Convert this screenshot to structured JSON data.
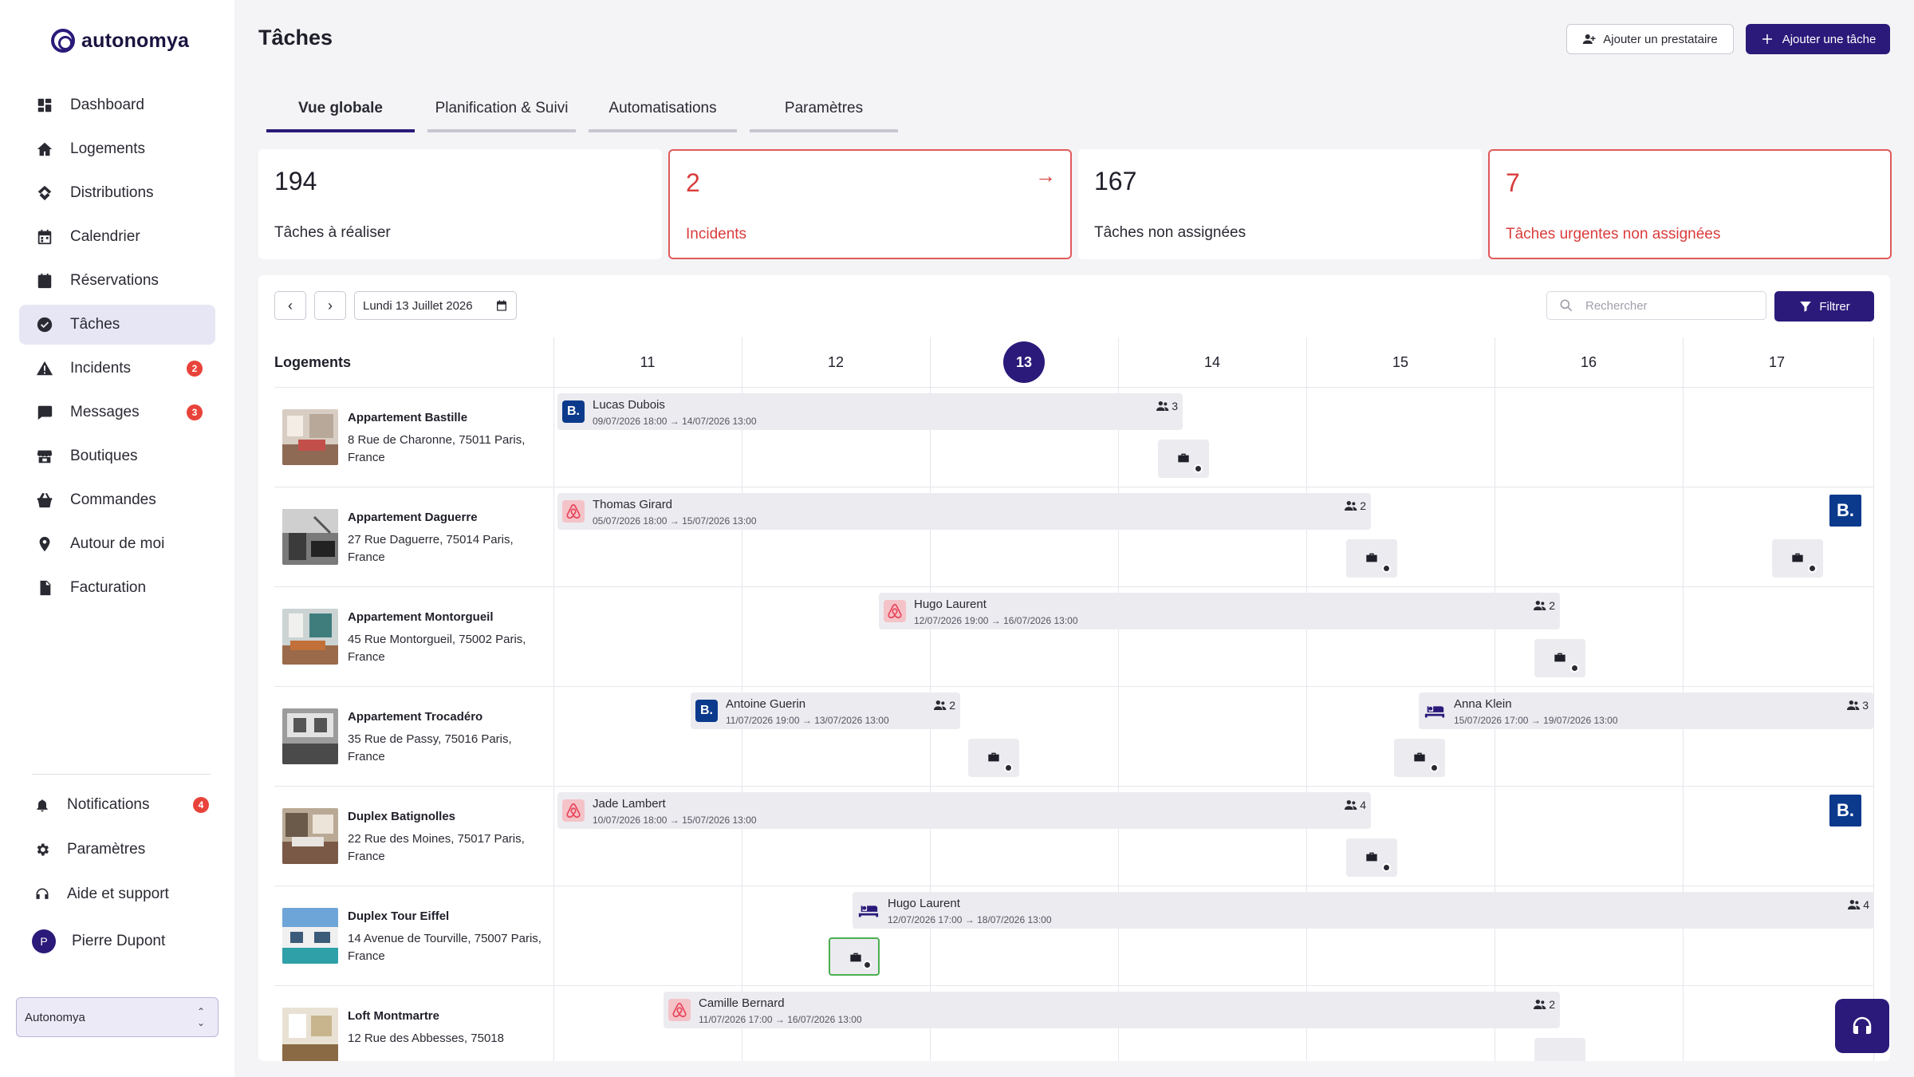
{
  "app": {
    "brand": "autonomya"
  },
  "sidebar": {
    "items": [
      {
        "label": "Dashboard",
        "icon": "dashboard-icon"
      },
      {
        "label": "Logements",
        "icon": "home-icon"
      },
      {
        "label": "Distributions",
        "icon": "distribution-icon"
      },
      {
        "label": "Calendrier",
        "icon": "calendar-icon"
      },
      {
        "label": "Réservations",
        "icon": "reservation-icon"
      },
      {
        "label": "Tâches",
        "icon": "check-circle-icon",
        "active": true
      },
      {
        "label": "Incidents",
        "icon": "warning-icon",
        "badge": "2"
      },
      {
        "label": "Messages",
        "icon": "chat-icon",
        "badge": "3"
      },
      {
        "label": "Boutiques",
        "icon": "store-icon"
      },
      {
        "label": "Commandes",
        "icon": "basket-icon"
      },
      {
        "label": "Autour de moi",
        "icon": "location-icon"
      },
      {
        "label": "Facturation",
        "icon": "invoice-icon"
      }
    ],
    "bottom": {
      "notifications": {
        "label": "Notifications",
        "badge": "4"
      },
      "settings": {
        "label": "Paramètres"
      },
      "help": {
        "label": "Aide et support"
      },
      "user": {
        "name": "Pierre Dupont",
        "initial": "P"
      }
    },
    "workspace": "Autonomya"
  },
  "header": {
    "title": "Tâches",
    "add_provider": "Ajouter un prestataire",
    "add_task": "Ajouter une tâche"
  },
  "tabs": [
    "Vue globale",
    "Planification & Suivi",
    "Automatisations",
    "Paramètres"
  ],
  "stats": [
    {
      "value": "194",
      "label": "Tâches à réaliser"
    },
    {
      "value": "2",
      "label": "Incidents"
    },
    {
      "value": "167",
      "label": "Tâches non assignées"
    },
    {
      "value": "7",
      "label": "Tâches urgentes non assignées"
    }
  ],
  "calendar": {
    "date_label": "Lundi 13 Juillet 2026",
    "search_placeholder": "Rechercher",
    "filter_label": "Filtrer",
    "column_label": "Logements",
    "days": [
      "11",
      "12",
      "13",
      "14",
      "15",
      "16",
      "17"
    ],
    "today": "13",
    "properties": [
      {
        "name": "Appartement Bastille",
        "address": "8 Rue de Charonne, 75011 Paris, France"
      },
      {
        "name": "Appartement Daguerre",
        "address": "27 Rue Daguerre, 75014 Paris, France"
      },
      {
        "name": "Appartement Montorgueil",
        "address": "45 Rue Montorgueil, 75002 Paris, France"
      },
      {
        "name": "Appartement Trocadéro",
        "address": "35 Rue de Passy, 75016 Paris, France"
      },
      {
        "name": "Duplex Batignolles",
        "address": "22 Rue des Moines, 75017 Paris, France"
      },
      {
        "name": "Duplex Tour Eiffel",
        "address": "14 Avenue de Tourville, 75007 Paris, France"
      },
      {
        "name": "Loft Montmartre",
        "address": "12 Rue des Abbesses, 75018"
      }
    ],
    "bookings": [
      {
        "guest": "Lucas Dubois",
        "dates": "09/07/2026 18:00 → 14/07/2026 13:00",
        "guests": "3",
        "platform": "booking"
      },
      {
        "guest": "Thomas Girard",
        "dates": "05/07/2026 18:00 → 15/07/2026 13:00",
        "guests": "2",
        "platform": "airbnb"
      },
      {
        "guest": "Hugo Laurent",
        "dates": "12/07/2026 19:00 → 16/07/2026 13:00",
        "guests": "2",
        "platform": "airbnb"
      },
      {
        "guest": "Antoine Guerin",
        "dates": "11/07/2026 19:00 → 13/07/2026 13:00",
        "guests": "2",
        "platform": "booking"
      },
      {
        "guest": "Anna Klein",
        "dates": "15/07/2026 17:00 → 19/07/2026 13:00",
        "guests": "3",
        "platform": "direct"
      },
      {
        "guest": "Jade Lambert",
        "dates": "10/07/2026 18:00 → 15/07/2026 13:00",
        "guests": "4",
        "platform": "airbnb"
      },
      {
        "guest": "Hugo Laurent",
        "dates": "12/07/2026 17:00 → 18/07/2026 13:00",
        "guests": "4",
        "platform": "direct"
      },
      {
        "guest": "Camille Bernard",
        "dates": "11/07/2026 17:00 → 16/07/2026 13:00",
        "guests": "2",
        "platform": "airbnb"
      }
    ],
    "platform_badge": "B."
  },
  "colors": {
    "accent": "#2b1a7a",
    "alert": "#d93c3c",
    "booking": "#0b3a8c",
    "airbnb": "#f4c3c8"
  }
}
